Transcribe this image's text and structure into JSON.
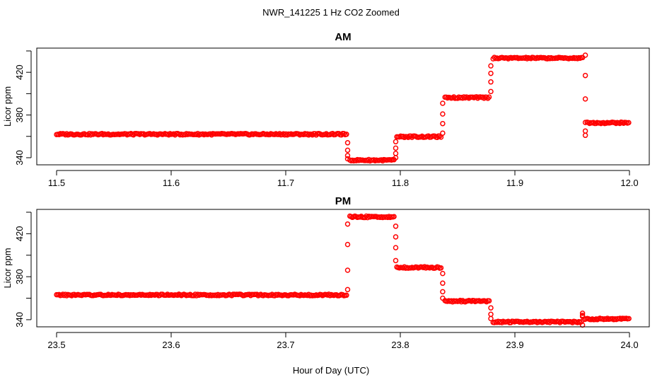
{
  "figure": {
    "title": "NWR_141225  1 Hz CO2 Zoomed",
    "xlabel": "Hour of Day (UTC)"
  },
  "chart_data": [
    {
      "type": "scatter",
      "title": "AM",
      "xlabel": "",
      "ylabel": "Licor ppm",
      "xlim": [
        11.5,
        12.0
      ],
      "ylim": [
        336,
        440
      ],
      "xticks": [
        11.5,
        11.6,
        11.7,
        11.8,
        11.9,
        12.0
      ],
      "xtick_labels": [
        "11.5",
        "11.6",
        "11.7",
        "11.8",
        "11.9",
        "12.0"
      ],
      "yticks": [
        340,
        360,
        380,
        400,
        420,
        440
      ],
      "ytick_labels": [
        "340",
        "",
        "380",
        "",
        "420",
        ""
      ],
      "color": "#ff0000",
      "marker": "open-circle",
      "segments": [
        {
          "x_start": 11.5,
          "x_end": 11.753,
          "y": 362.0
        },
        {
          "x_start": 11.756,
          "x_end": 11.795,
          "y": 337.7
        },
        {
          "x_start": 11.797,
          "x_end": 11.836,
          "y": 359.7
        },
        {
          "x_start": 11.839,
          "x_end": 11.878,
          "y": 396.3
        },
        {
          "x_start": 11.881,
          "x_end": 11.96,
          "y": 433.3
        },
        {
          "x_start": 11.963,
          "x_end": 12.0,
          "y": 372.7
        }
      ],
      "transitions": [
        {
          "x": 11.754,
          "y": [
            354,
            347,
            342,
            339
          ]
        },
        {
          "x": 11.796,
          "y": [
            340,
            344,
            349,
            355
          ]
        },
        {
          "x": 11.837,
          "y": [
            363,
            372,
            381,
            391
          ]
        },
        {
          "x": 11.879,
          "y": [
            402,
            411,
            419,
            426
          ]
        },
        {
          "x": 11.9615,
          "y": [
            436,
            417,
            395,
            373,
            365,
            361
          ]
        }
      ]
    },
    {
      "type": "scatter",
      "title": "PM",
      "xlabel": "",
      "ylabel": "Licor ppm",
      "xlim": [
        23.5,
        24.0
      ],
      "ylim": [
        336,
        440
      ],
      "xticks": [
        23.5,
        23.6,
        23.7,
        23.8,
        23.9,
        24.0
      ],
      "xtick_labels": [
        "23.5",
        "23.6",
        "23.7",
        "23.8",
        "23.9",
        "24.0"
      ],
      "yticks": [
        340,
        360,
        380,
        400,
        420,
        440
      ],
      "ytick_labels": [
        "340",
        "",
        "380",
        "",
        "420",
        ""
      ],
      "color": "#ff0000",
      "marker": "open-circle",
      "segments": [
        {
          "x_start": 23.5,
          "x_end": 23.753,
          "y": 363.0
        },
        {
          "x_start": 23.756,
          "x_end": 23.795,
          "y": 435.7
        },
        {
          "x_start": 23.797,
          "x_end": 23.836,
          "y": 388.6
        },
        {
          "x_start": 23.839,
          "x_end": 23.878,
          "y": 357.3
        },
        {
          "x_start": 23.881,
          "x_end": 23.958,
          "y": 337.9
        },
        {
          "x_start": 23.961,
          "x_end": 24.0,
          "y": 340.7
        }
      ],
      "transitions": [
        {
          "x": 23.754,
          "y": [
            368,
            386,
            410,
            429
          ]
        },
        {
          "x": 23.796,
          "y": [
            427,
            417,
            407,
            395
          ]
        },
        {
          "x": 23.837,
          "y": [
            383,
            374,
            366,
            360
          ]
        },
        {
          "x": 23.879,
          "y": [
            351,
            345,
            341
          ]
        },
        {
          "x": 23.959,
          "y": [
            335,
            344,
            346,
            343
          ]
        }
      ]
    }
  ]
}
